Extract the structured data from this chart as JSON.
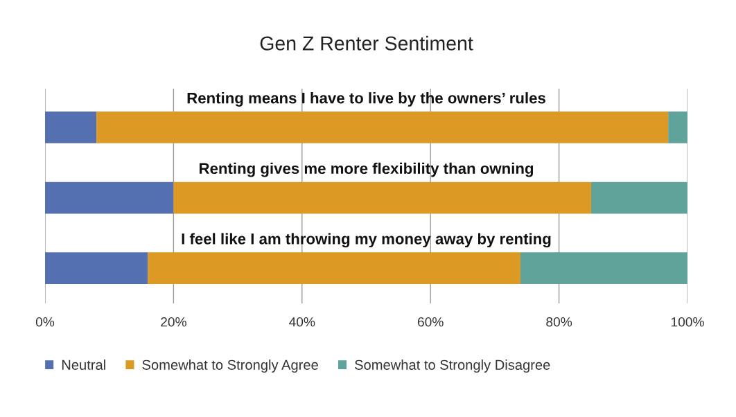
{
  "chart_data": {
    "type": "bar",
    "orientation": "horizontal",
    "stacked": true,
    "title": "Gen Z Renter Sentiment",
    "categories": [
      "Renting means I have to live by the owners’ rules",
      "Renting gives me more flexibility than owning",
      "I feel like I am throwing my money away by renting"
    ],
    "series": [
      {
        "name": "Neutral",
        "color": "#5470b0",
        "values": [
          8,
          20,
          16
        ]
      },
      {
        "name": "Somewhat to Strongly Agree",
        "color": "#dc9a25",
        "values": [
          89,
          65,
          58
        ]
      },
      {
        "name": "Somewhat to Strongly Disagree",
        "color": "#60a39b",
        "values": [
          3,
          15,
          26
        ]
      }
    ],
    "xlim": [
      0,
      100
    ],
    "xticks": [
      {
        "value": 0,
        "label": "0%"
      },
      {
        "value": 20,
        "label": "20%"
      },
      {
        "value": 40,
        "label": "40%"
      },
      {
        "value": 60,
        "label": "60%"
      },
      {
        "value": 80,
        "label": "80%"
      },
      {
        "value": 100,
        "label": "100%"
      }
    ],
    "grid": "x",
    "legend": "bottom"
  }
}
